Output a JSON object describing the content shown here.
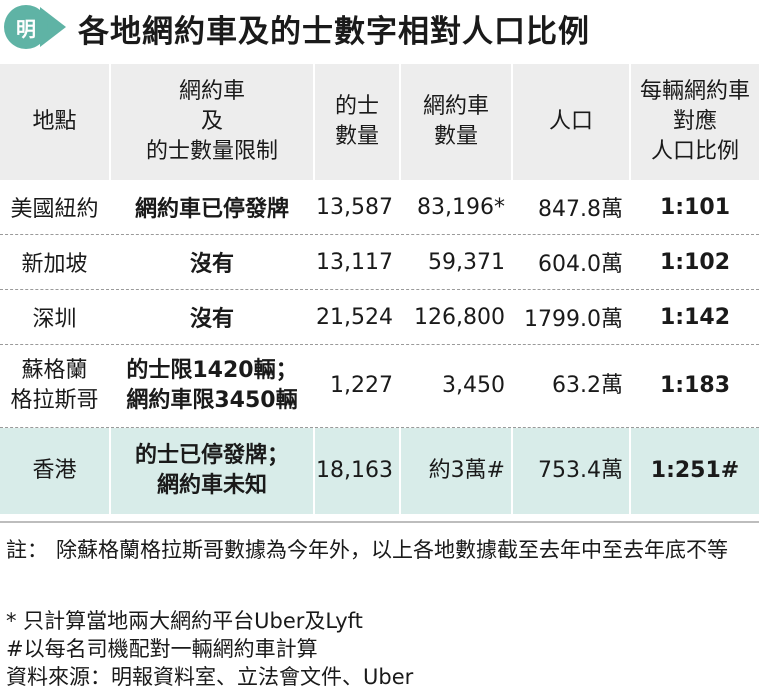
{
  "header": {
    "logo": "明",
    "title": "各地網約車及的士數字相對人口比例"
  },
  "table": {
    "columns": [
      [
        "地點"
      ],
      [
        "網約車",
        "及",
        "的士數量限制"
      ],
      [
        "的士",
        "數量"
      ],
      [
        "網約車",
        "數量"
      ],
      [
        "人口"
      ],
      [
        "每輛網約車",
        "對應",
        "人口比例"
      ]
    ],
    "rows": [
      {
        "place": [
          "美國紐約"
        ],
        "limit": [
          "網約車已停發牌"
        ],
        "taxis": "13,587",
        "rides": "83,196*",
        "pop": "847.8萬",
        "ratio": "1:101"
      },
      {
        "place": [
          "新加坡"
        ],
        "limit": [
          "沒有"
        ],
        "taxis": "13,117",
        "rides": "59,371",
        "pop": "604.0萬",
        "ratio": "1:102"
      },
      {
        "place": [
          "深圳"
        ],
        "limit": [
          "沒有"
        ],
        "taxis": "21,524",
        "rides": "126,800",
        "pop": "1799.0萬",
        "ratio": "1:142"
      },
      {
        "place": [
          "蘇格蘭",
          "格拉斯哥"
        ],
        "limit": [
          "的士限1420輛；",
          "網約車限3450輛"
        ],
        "taxis": "1,227",
        "rides": "3,450",
        "pop": "63.2萬",
        "ratio": "1:183"
      },
      {
        "place": [
          "香港"
        ],
        "limit": [
          "的士已停發牌；",
          "網約車未知"
        ],
        "taxis": "18,163",
        "rides": "約3萬#",
        "pop": "753.4萬",
        "ratio": "1:251#"
      }
    ]
  },
  "notes": {
    "label": "註：",
    "text": "除蘇格蘭格拉斯哥數據為今年外，以上各地數據截至去年中至去年底不等",
    "footnote_star": "* 只計算當地兩大網約平台Uber及Lyft",
    "footnote_hash": "#以每名司機配對一輛網約車計算",
    "source": "資料來源：明報資料室、立法會文件、Uber"
  }
}
